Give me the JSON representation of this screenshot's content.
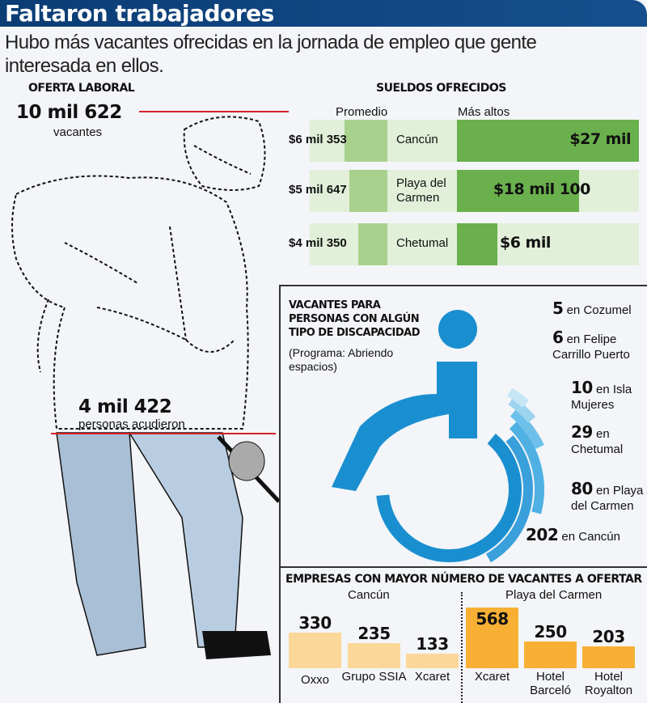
{
  "header": {
    "title": "Faltaron trabajadores",
    "subtitle": "Hubo más vacantes ofrecidas en la jornada de empleo que gente interesada en ellos."
  },
  "oferta": {
    "heading": "OFERTA LABORAL",
    "vacantes_value": "10 mil 622",
    "vacantes_label": "vacantes",
    "asistentes_value": "4 mil 422",
    "asistentes_label": "personas acudieron"
  },
  "colors": {
    "header": "#0b3c74",
    "avg": "#a9d18e",
    "max": "#6ab04c",
    "row_bg": "#e2efd9",
    "wheelchair": "#1a8fd0",
    "cancun_bars": "#fcd79a",
    "playa_bars": "#f7b034",
    "marker_line": "#d62027"
  },
  "chart_data": [
    {
      "type": "bar",
      "title": "SUELDOS OFRECIDOS",
      "series": [
        {
          "name": "Promedio",
          "values": [
            6353,
            5647,
            4350
          ],
          "labels": [
            "$6 mil 353",
            "$5 mil 647",
            "$4 mil 350"
          ]
        },
        {
          "name": "Más altos",
          "values": [
            27000,
            18100,
            6000
          ],
          "labels": [
            "$27 mil",
            "$18 mil 100",
            "$6 mil"
          ]
        }
      ],
      "categories": [
        "Cancún",
        "Playa del Carmen",
        "Chetumal"
      ]
    },
    {
      "type": "pie",
      "title": "VACANTES PARA PERSONAS CON ALGÚN TIPO DE DISCAPACIDAD",
      "subtitle": "(Programa: Abriendo espacios)",
      "items": [
        {
          "value": 5,
          "value_label": "5",
          "label": "en Cozumel"
        },
        {
          "value": 6,
          "value_label": "6",
          "label": "en Felipe Carrillo Puerto"
        },
        {
          "value": 10,
          "value_label": "10",
          "label": "en Isla Mujeres"
        },
        {
          "value": 29,
          "value_label": "29",
          "label": "en Chetumal"
        },
        {
          "value": 80,
          "value_label": "80",
          "label": "en Playa del Carmen"
        },
        {
          "value": 202,
          "value_label": "202",
          "label": "en Cancún"
        }
      ]
    },
    {
      "type": "bar",
      "title": "EMPRESAS CON MAYOR NÚMERO DE VACANTES A OFERTAR",
      "groups": [
        {
          "name": "Cancún",
          "categories": [
            "Oxxo",
            "Grupo SSIA",
            "Xcaret"
          ],
          "values": [
            330,
            235,
            133
          ]
        },
        {
          "name": "Playa del Carmen",
          "categories": [
            "Xcaret",
            "Hotel Barceló",
            "Hotel Royalton"
          ],
          "values": [
            568,
            250,
            203
          ]
        }
      ]
    }
  ]
}
